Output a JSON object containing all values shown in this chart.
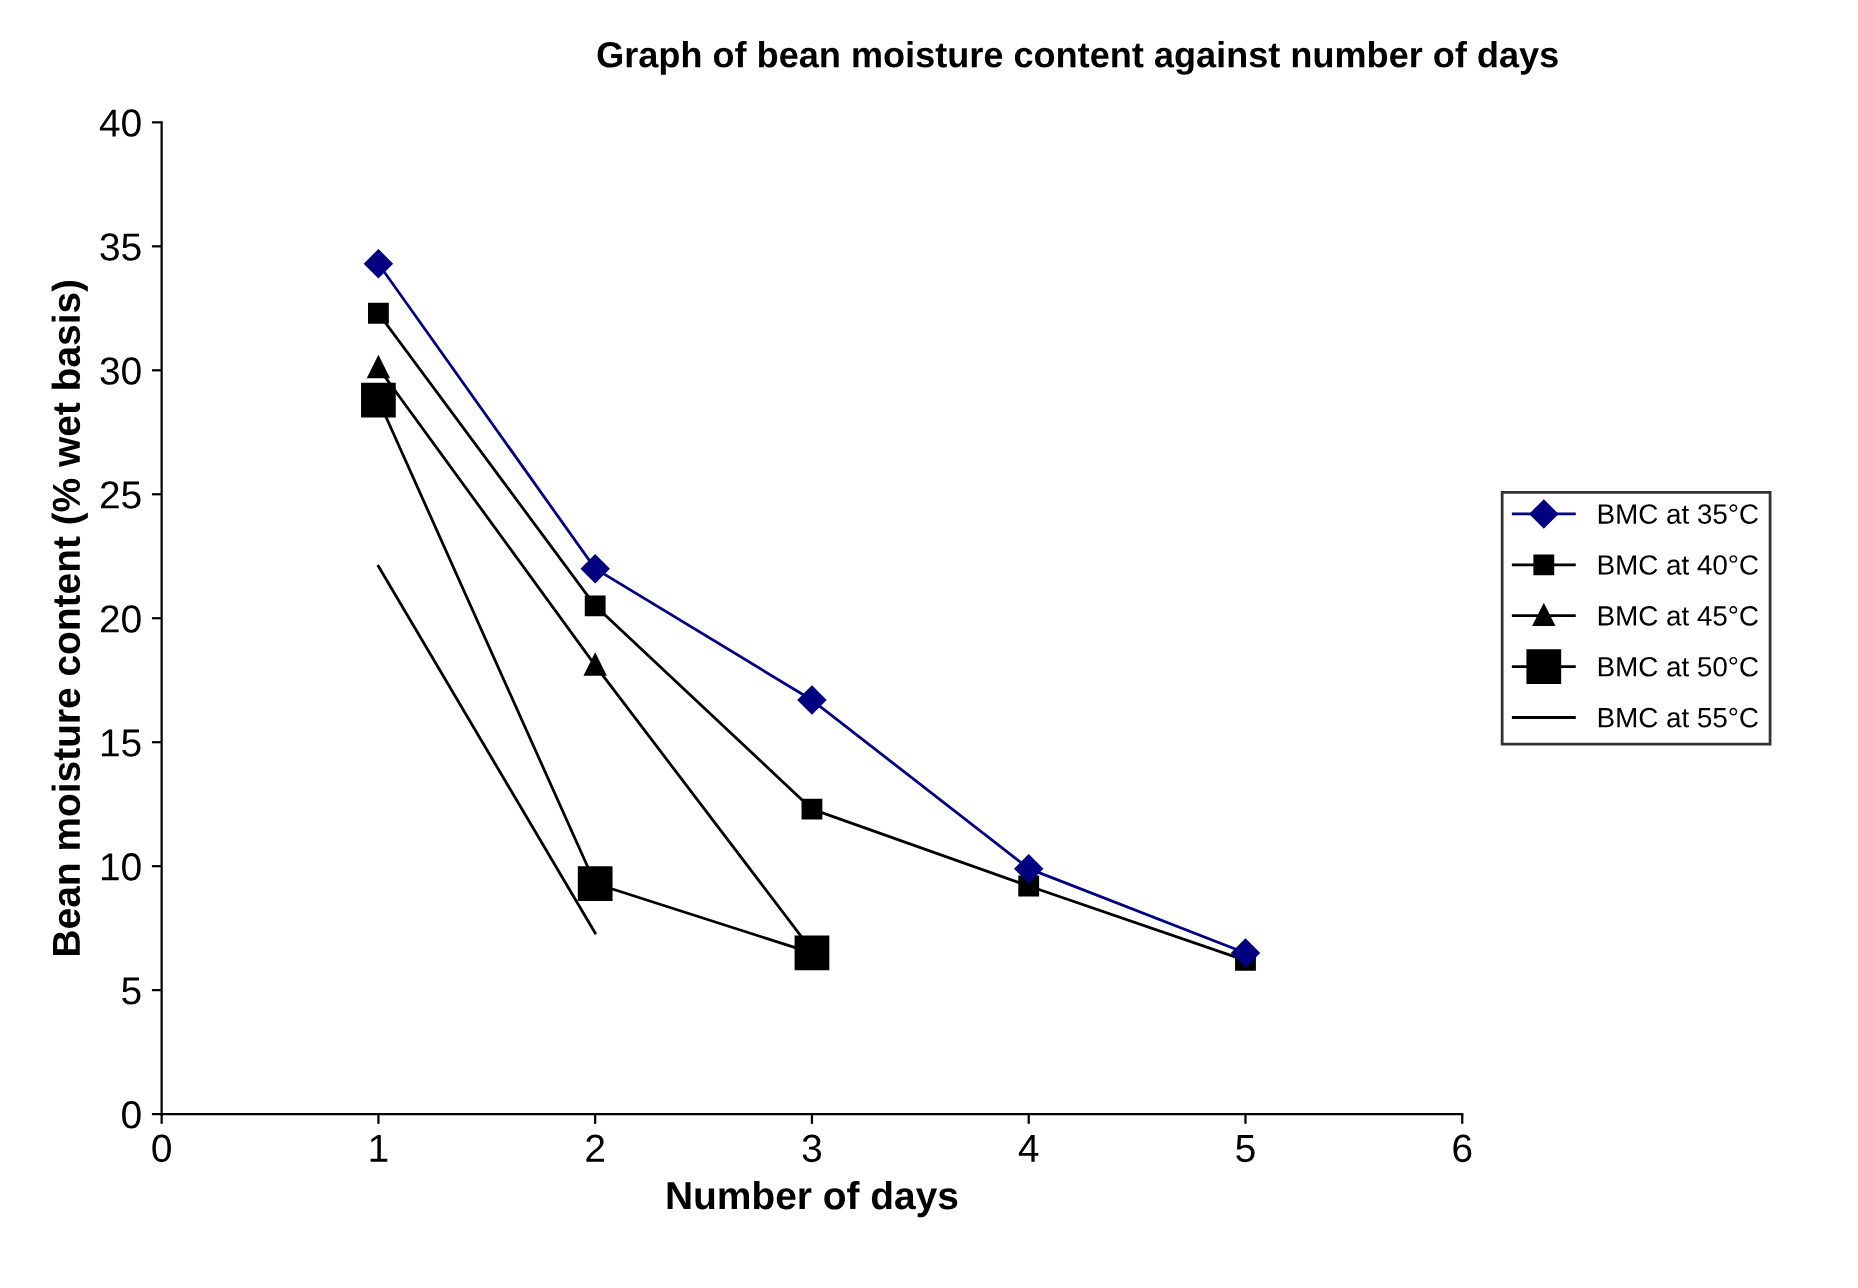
{
  "chart_data": {
    "type": "line",
    "title": "Graph of bean moisture content against number of days",
    "xlabel": "Number of days",
    "ylabel": "Bean moisture content (% wet basis)",
    "x": [
      1,
      2,
      3,
      4,
      5
    ],
    "series": [
      {
        "name": "BMC at 35°C",
        "color": "#000080",
        "marker": "diamond",
        "values": [
          34.3,
          22.0,
          16.7,
          9.9,
          6.5
        ]
      },
      {
        "name": "BMC at 40°C",
        "color": "#000000",
        "marker": "square",
        "values": [
          32.3,
          20.5,
          12.3,
          9.2,
          6.2
        ]
      },
      {
        "name": "BMC at 45°C",
        "color": "#000000",
        "marker": "triangle",
        "values": [
          30.1,
          18.1,
          6.6,
          null,
          null
        ]
      },
      {
        "name": "BMC at 50°C",
        "color": "#000000",
        "marker": "square",
        "values": [
          28.8,
          9.3,
          6.5,
          null,
          null
        ]
      },
      {
        "name": "BMC at 55°C",
        "color": "#000000",
        "marker": "none",
        "values": [
          22.1,
          7.3,
          null,
          null,
          null
        ]
      }
    ],
    "xlim": [
      0,
      6
    ],
    "xticks": [
      0,
      1,
      2,
      3,
      4,
      5,
      6
    ],
    "ylim": [
      0,
      40
    ],
    "yticks": [
      0,
      5,
      10,
      15,
      20,
      25,
      30,
      35,
      40
    ],
    "grid": false,
    "legend": "right",
    "line_style": "solid"
  }
}
